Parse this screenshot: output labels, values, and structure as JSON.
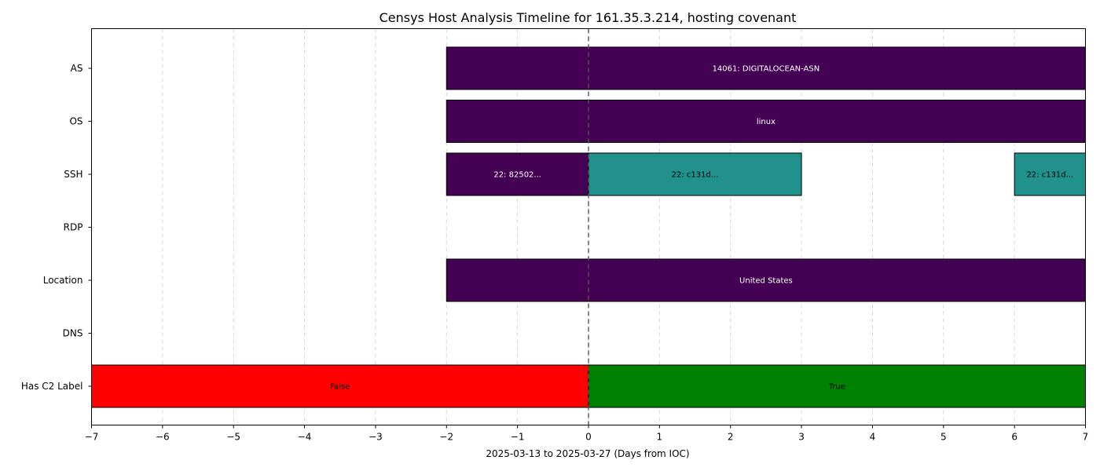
{
  "chart_data": {
    "type": "timeline",
    "title": "Censys Host Analysis Timeline for 161.35.3.214, hosting covenant",
    "xlabel": "2025-03-13 to 2025-03-27 (Days from IOC)",
    "ylabel": "",
    "xlim": [
      -7,
      7
    ],
    "xticks": [
      -7,
      -6,
      -5,
      -4,
      -3,
      -2,
      -1,
      0,
      1,
      2,
      3,
      4,
      5,
      6,
      7
    ],
    "xtick_labels": [
      "−7",
      "−6",
      "−5",
      "−4",
      "−3",
      "−2",
      "−1",
      "0",
      "1",
      "2",
      "3",
      "4",
      "5",
      "6",
      "7"
    ],
    "grid": "x-dashed",
    "ioc_marker_x": 0,
    "rows": [
      "AS",
      "OS",
      "SSH",
      "RDP",
      "Location",
      "DNS",
      "Has C2 Label"
    ],
    "bars": [
      {
        "row": "AS",
        "start": -2,
        "end": 7,
        "label": "14061: DIGITALOCEAN-ASN",
        "color": "#440154",
        "text_color": "#ffffff"
      },
      {
        "row": "OS",
        "start": -2,
        "end": 7,
        "label": "linux",
        "color": "#440154",
        "text_color": "#ffffff"
      },
      {
        "row": "SSH",
        "start": -2,
        "end": 0,
        "label": "22: 82502...",
        "color": "#440154",
        "text_color": "#ffffff"
      },
      {
        "row": "SSH",
        "start": 0,
        "end": 3,
        "label": "22: c131d...",
        "color": "#21918c",
        "text_color": "#000000"
      },
      {
        "row": "SSH",
        "start": 6,
        "end": 7,
        "label": "22: c131d...",
        "color": "#21918c",
        "text_color": "#000000"
      },
      {
        "row": "Location",
        "start": -2,
        "end": 7,
        "label": "United States",
        "color": "#440154",
        "text_color": "#ffffff"
      },
      {
        "row": "Has C2 Label",
        "start": -7,
        "end": 0,
        "label": "False",
        "color": "#ff0000",
        "text_color": "#000000"
      },
      {
        "row": "Has C2 Label",
        "start": 0,
        "end": 7,
        "label": "True",
        "color": "#008000",
        "text_color": "#000000"
      }
    ]
  }
}
